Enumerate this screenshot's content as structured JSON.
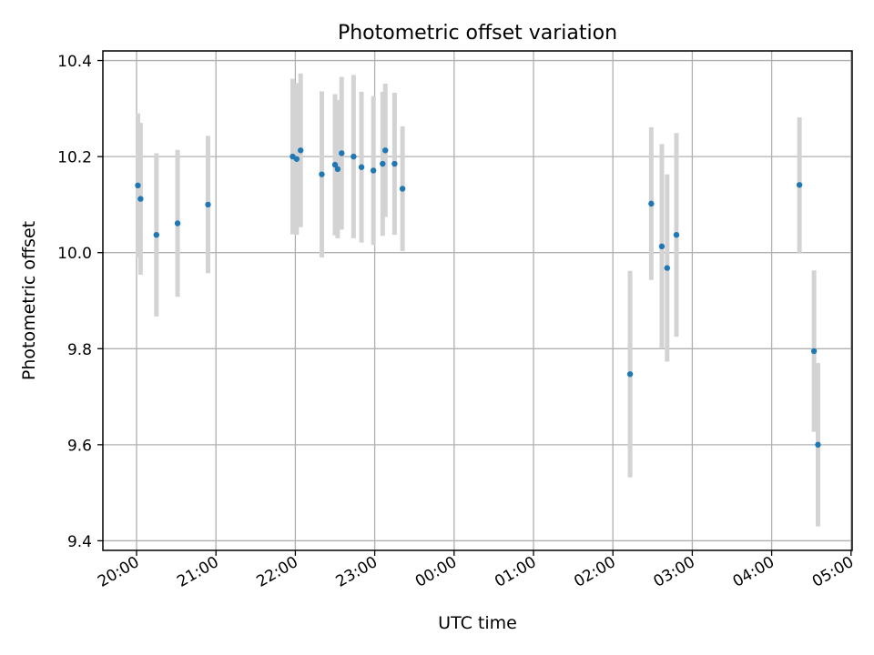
{
  "chart_data": {
    "type": "scatter",
    "title": "Photometric offset variation",
    "xlabel": "UTC time",
    "ylabel": "Photometric offset",
    "x_ticks": [
      "20:00",
      "21:00",
      "22:00",
      "23:00",
      "00:00",
      "01:00",
      "02:00",
      "03:00",
      "04:00",
      "05:00"
    ],
    "y_ticks": [
      "9.4",
      "9.6",
      "9.8",
      "10.0",
      "10.2",
      "10.4"
    ],
    "ylim": [
      9.38,
      10.42
    ],
    "grid": true,
    "colors": {
      "marker": "#1f77b4",
      "errorbar": "#d3d3d3",
      "grid": "#b0b0b0"
    },
    "points": [
      {
        "time": "20:01",
        "y": 10.14,
        "err": 0.15
      },
      {
        "time": "20:03",
        "y": 10.112,
        "err": 0.158
      },
      {
        "time": "20:15",
        "y": 10.037,
        "err": 0.17
      },
      {
        "time": "20:31",
        "y": 10.061,
        "err": 0.153
      },
      {
        "time": "20:54",
        "y": 10.1,
        "err": 0.143
      },
      {
        "time": "21:58",
        "y": 10.2,
        "err": 0.162
      },
      {
        "time": "22:01",
        "y": 10.195,
        "err": 0.158
      },
      {
        "time": "22:04",
        "y": 10.213,
        "err": 0.16
      },
      {
        "time": "22:20",
        "y": 10.163,
        "err": 0.173
      },
      {
        "time": "22:30",
        "y": 10.183,
        "err": 0.147
      },
      {
        "time": "22:32",
        "y": 10.174,
        "err": 0.144
      },
      {
        "time": "22:35",
        "y": 10.207,
        "err": 0.159
      },
      {
        "time": "22:44",
        "y": 10.2,
        "err": 0.17
      },
      {
        "time": "22:50",
        "y": 10.178,
        "err": 0.157
      },
      {
        "time": "22:59",
        "y": 10.171,
        "err": 0.155
      },
      {
        "time": "23:06",
        "y": 10.185,
        "err": 0.15
      },
      {
        "time": "23:08",
        "y": 10.213,
        "err": 0.139
      },
      {
        "time": "23:15",
        "y": 10.185,
        "err": 0.148
      },
      {
        "time": "23:21",
        "y": 10.133,
        "err": 0.13
      },
      {
        "time": "02:13",
        "y": 9.747,
        "err": 0.215
      },
      {
        "time": "02:29",
        "y": 10.102,
        "err": 0.159
      },
      {
        "time": "02:37",
        "y": 10.013,
        "err": 0.213
      },
      {
        "time": "02:41",
        "y": 9.968,
        "err": 0.195
      },
      {
        "time": "02:48",
        "y": 10.037,
        "err": 0.212
      },
      {
        "time": "04:21",
        "y": 10.141,
        "err": 0.141
      },
      {
        "time": "04:32",
        "y": 9.795,
        "err": 0.168
      },
      {
        "time": "04:35",
        "y": 9.6,
        "err": 0.17
      }
    ]
  }
}
